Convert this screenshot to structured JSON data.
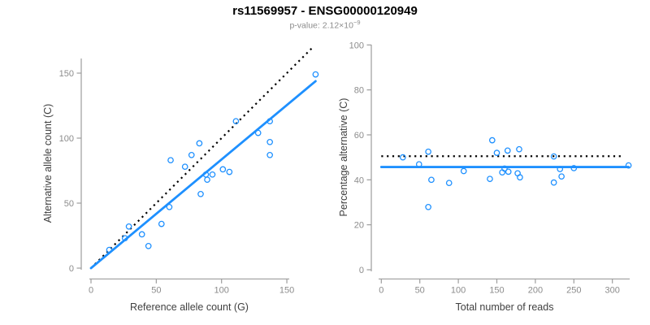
{
  "header": {
    "title": "rs11569957 - ENSG00000120949",
    "pvalue_label": "p-value: ",
    "pvalue_base": "2.12×10",
    "pvalue_exponent": "−9"
  },
  "colors": {
    "point_blue": "#1E90FF",
    "line_blue": "#1E90FF",
    "dotted_line": "#000000",
    "axis_line": "#9c9c9c",
    "tick_label": "#8c8c8c",
    "axis_title": "#404040",
    "title": "#000000",
    "subtitle": "#8c8c8c"
  },
  "chart_data": [
    {
      "type": "scatter",
      "title": "",
      "xlabel": "Reference allele count (G)",
      "ylabel": "Alternative allele count (C)",
      "xlim": [
        0,
        173
      ],
      "ylim": [
        0,
        172
      ],
      "xticks": [
        0,
        50,
        100,
        150
      ],
      "yticks": [
        0,
        50,
        100,
        150
      ],
      "grid": false,
      "points": [
        [
          14,
          14
        ],
        [
          26,
          23
        ],
        [
          29,
          32
        ],
        [
          39,
          26
        ],
        [
          44,
          17
        ],
        [
          54,
          34
        ],
        [
          60,
          47
        ],
        [
          61,
          83
        ],
        [
          72,
          78
        ],
        [
          77,
          87
        ],
        [
          83,
          96
        ],
        [
          84,
          57
        ],
        [
          88,
          72
        ],
        [
          89,
          68
        ],
        [
          93,
          72
        ],
        [
          101,
          76
        ],
        [
          106,
          74
        ],
        [
          111,
          113
        ],
        [
          128,
          104
        ],
        [
          137,
          113
        ],
        [
          137,
          97
        ],
        [
          137,
          87
        ],
        [
          172,
          149
        ]
      ],
      "lines": [
        {
          "name": "identity-line",
          "style": "dotted",
          "from": [
            0,
            0
          ],
          "to": [
            170,
            170
          ]
        },
        {
          "name": "fit-line",
          "style": "solid",
          "from": [
            0,
            0
          ],
          "to": [
            172,
            143.8
          ]
        }
      ]
    },
    {
      "type": "scatter",
      "title": "",
      "xlabel": "Total number of reads",
      "ylabel": "Percentage alternative (C)",
      "xlim": [
        0,
        322
      ],
      "ylim": [
        0,
        100
      ],
      "xticks": [
        0,
        50,
        100,
        150,
        200,
        250,
        300
      ],
      "yticks": [
        0,
        20,
        40,
        60,
        80,
        100
      ],
      "grid": false,
      "points": [
        [
          28,
          50.0
        ],
        [
          49,
          46.9
        ],
        [
          61,
          52.5
        ],
        [
          65,
          40.0
        ],
        [
          61,
          27.9
        ],
        [
          88,
          38.6
        ],
        [
          107,
          43.9
        ],
        [
          144,
          57.6
        ],
        [
          150,
          52.0
        ],
        [
          164,
          53.0
        ],
        [
          179,
          53.6
        ],
        [
          141,
          40.4
        ],
        [
          160,
          45.0
        ],
        [
          157,
          43.3
        ],
        [
          165,
          43.6
        ],
        [
          177,
          42.9
        ],
        [
          180,
          41.1
        ],
        [
          224,
          50.4
        ],
        [
          232,
          44.8
        ],
        [
          250,
          45.2
        ],
        [
          234,
          41.5
        ],
        [
          224,
          38.8
        ],
        [
          321,
          46.4
        ]
      ],
      "lines": [
        {
          "name": "null-line",
          "style": "dotted",
          "from": [
            0,
            50.5
          ],
          "to": [
            314,
            50.5
          ]
        },
        {
          "name": "fit-line",
          "style": "solid",
          "from": [
            0,
            45.7
          ],
          "to": [
            321,
            45.7
          ]
        }
      ]
    }
  ]
}
